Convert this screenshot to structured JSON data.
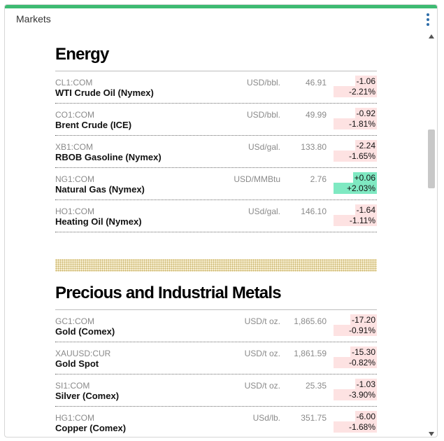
{
  "widget": {
    "title": "Markets"
  },
  "energy": {
    "title": "Energy",
    "rows": [
      {
        "ticker": "CL1:COM",
        "name": "WTI Crude Oil (Nymex)",
        "unit": "USD/bbl.",
        "price": "46.91",
        "change": "-1.06",
        "pct": "-2.21%"
      },
      {
        "ticker": "CO1:COM",
        "name": "Brent Crude (ICE)",
        "unit": "USD/bbl.",
        "price": "49.99",
        "change": "-0.92",
        "pct": "-1.81%"
      },
      {
        "ticker": "XB1:COM",
        "name": "RBOB Gasoline (Nymex)",
        "unit": "USd/gal.",
        "price": "133.80",
        "change": "-2.24",
        "pct": "-1.65%"
      },
      {
        "ticker": "NG1:COM",
        "name": "Natural Gas (Nymex)",
        "unit": "USD/MMBtu",
        "price": "2.76",
        "change": "+0.06",
        "pct": "+2.03%"
      },
      {
        "ticker": "HO1:COM",
        "name": "Heating Oil (Nymex)",
        "unit": "USd/gal.",
        "price": "146.10",
        "change": "-1.64",
        "pct": "-1.11%"
      }
    ]
  },
  "metals": {
    "title": "Precious and Industrial Metals",
    "rows": [
      {
        "ticker": "GC1:COM",
        "name": "Gold (Comex)",
        "unit": "USD/t oz.",
        "price": "1,865.60",
        "change": "-17.20",
        "pct": "-0.91%"
      },
      {
        "ticker": "XAUUSD:CUR",
        "name": "Gold Spot",
        "unit": "USD/t oz.",
        "price": "1,861.59",
        "change": "-15.30",
        "pct": "-0.82%"
      },
      {
        "ticker": "SI1:COM",
        "name": "Silver (Comex)",
        "unit": "USD/t oz.",
        "price": "25.35",
        "change": "-1.03",
        "pct": "-3.90%"
      },
      {
        "ticker": "HG1:COM",
        "name": "Copper (Comex)",
        "unit": "USd/lb.",
        "price": "351.75",
        "change": "-6.00",
        "pct": "-1.68%"
      }
    ]
  },
  "colors": {
    "accent": "#3dba72",
    "negative_bg": "#fde2e2",
    "positive_bg": "#7fe9c2",
    "menu_dots": "#2f6ea9"
  },
  "icons": {
    "menu": "kebab-menu-icon",
    "scroll_up": "scroll-up-arrow-icon",
    "scroll_down": "scroll-down-arrow-icon"
  }
}
